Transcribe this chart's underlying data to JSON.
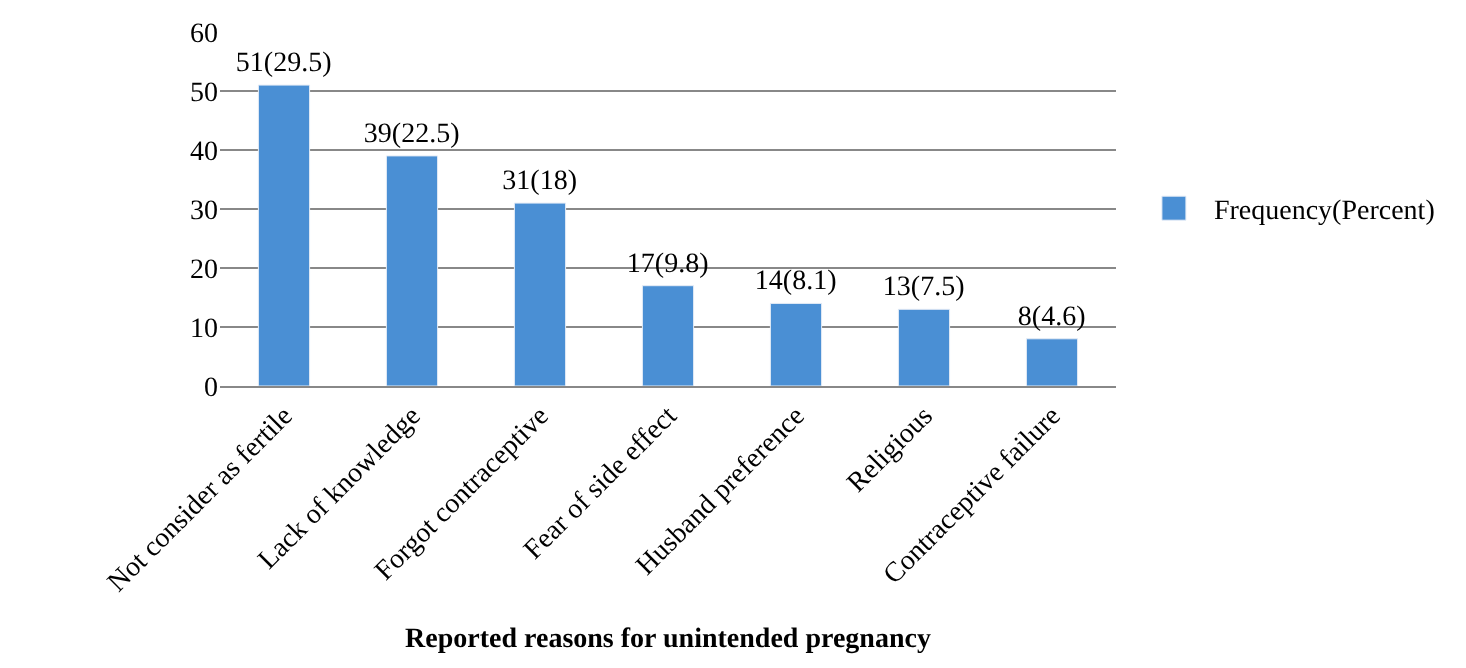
{
  "chart_data": {
    "type": "bar",
    "xlabel": "Reported reasons for unintended pregnancy",
    "categories": [
      "Not consider as fertile",
      "Lack of knowledge",
      "Forgot contraceptive",
      "Fear of side effect",
      "Husband preference",
      "Religious",
      "Contraceptive failure"
    ],
    "series": [
      {
        "name": "Frequency(Percent)",
        "color": "#4a8fd4",
        "values": [
          51,
          39,
          31,
          17,
          14,
          13,
          8
        ],
        "value_labels": [
          "51(29.5)",
          "39(22.5)",
          "31(18)",
          "17(9.8)",
          "14(8.1)",
          "13(7.5)",
          "8(4.6)"
        ]
      }
    ],
    "ylim": [
      0,
      60
    ],
    "yticks": [
      0,
      10,
      20,
      30,
      40,
      50,
      60
    ],
    "grid": "y",
    "legend": "right"
  }
}
